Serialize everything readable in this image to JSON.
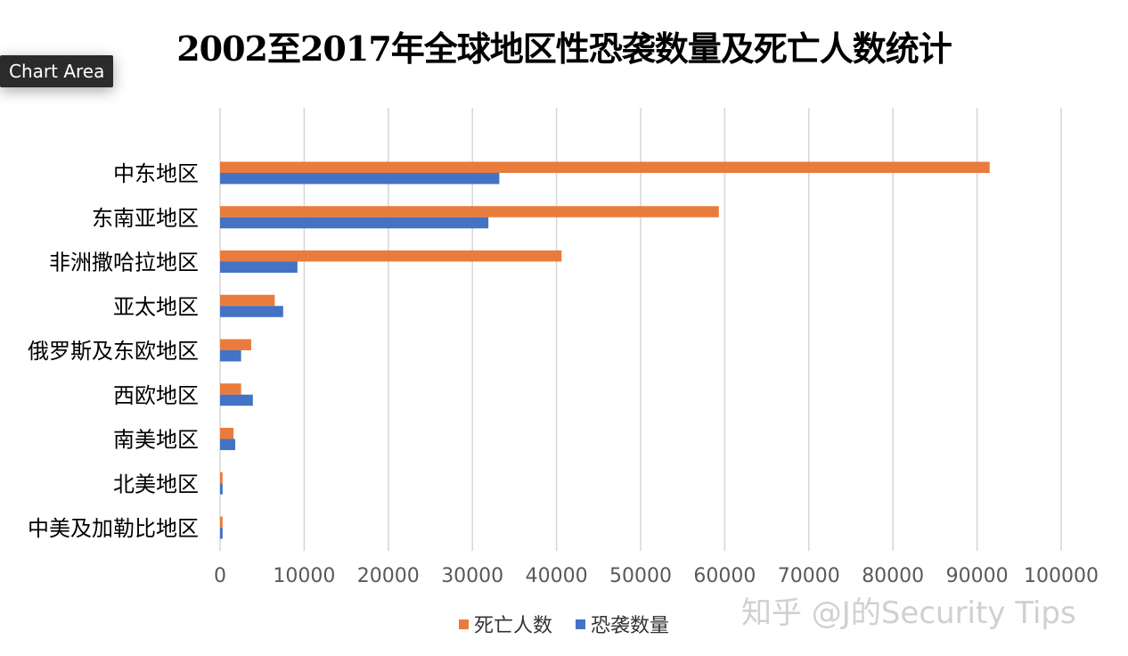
{
  "chart_data": {
    "type": "bar",
    "orientation": "horizontal",
    "title": "2002至2017年全球地区性恐袭数量及死亡人数统计",
    "categories": [
      "中东地区",
      "东南亚地区",
      "非洲撒哈拉地区",
      "亚太地区",
      "俄罗斯及东欧地区",
      "西欧地区",
      "南美地区",
      "北美地区",
      "中美及加勒比地区"
    ],
    "series": [
      {
        "name": "死亡人数",
        "color": "#E97C3C",
        "values": [
          91500,
          59300,
          40600,
          6500,
          3700,
          2500,
          1600,
          300,
          300
        ]
      },
      {
        "name": "恐袭数量",
        "color": "#4472C4",
        "values": [
          33200,
          31900,
          9200,
          7500,
          2500,
          3900,
          1800,
          300,
          300
        ]
      }
    ],
    "xticks": [
      "0",
      "10000",
      "20000",
      "30000",
      "40000",
      "50000",
      "60000",
      "70000",
      "80000",
      "90000",
      "100000"
    ],
    "xlim": [
      0,
      100000
    ],
    "grid": "vertical",
    "legend_position": "bottom"
  },
  "tooltip": {
    "label": "Chart Area"
  },
  "watermark": {
    "text": "知乎 @J的Security Tips"
  }
}
